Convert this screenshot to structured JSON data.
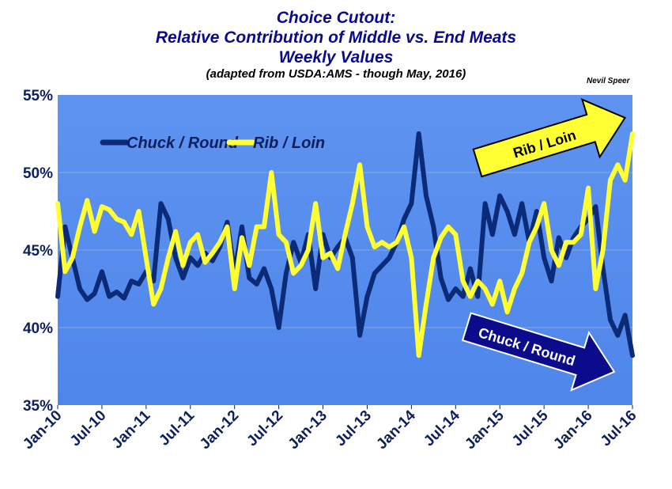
{
  "chart_data": {
    "type": "line",
    "title_lines": [
      "Choice Cutout:",
      "Relative Contribution of Middle vs. End Meats",
      "Weekly Values"
    ],
    "subtitle": "(adapted from USDA:AMS - though May, 2016)",
    "credit": "Nevil Speer",
    "x_ticks": [
      "Jan-10",
      "Jul-10",
      "Jan-11",
      "Jul-11",
      "Jan-12",
      "Jul-12",
      "Jan-13",
      "Jul-13",
      "Jan-14",
      "Jul-14",
      "Jan-15",
      "Jul-15",
      "Jan-16",
      "Jul-16"
    ],
    "x_range": [
      "2010-01",
      "2016-07"
    ],
    "y_ticks": [
      "35%",
      "40%",
      "45%",
      "50%",
      "55%"
    ],
    "ylim": [
      35,
      55
    ],
    "grid": true,
    "legend_position": "top-left",
    "series": [
      {
        "name": "Chuck / Round",
        "color": "#0b2a78",
        "points": [
          [
            "2010-01",
            42.0
          ],
          [
            "2010-02",
            46.5
          ],
          [
            "2010-03",
            44.5
          ],
          [
            "2010-04",
            42.5
          ],
          [
            "2010-05",
            41.8
          ],
          [
            "2010-06",
            42.2
          ],
          [
            "2010-07",
            43.6
          ],
          [
            "2010-08",
            42.0
          ],
          [
            "2010-09",
            42.3
          ],
          [
            "2010-10",
            41.9
          ],
          [
            "2010-11",
            43.0
          ],
          [
            "2010-12",
            42.8
          ],
          [
            "2011-01",
            43.6
          ],
          [
            "2011-02",
            43.0
          ],
          [
            "2011-03",
            48.0
          ],
          [
            "2011-04",
            47.0
          ],
          [
            "2011-05",
            44.5
          ],
          [
            "2011-06",
            43.2
          ],
          [
            "2011-07",
            44.5
          ],
          [
            "2011-08",
            44.0
          ],
          [
            "2011-09",
            44.8
          ],
          [
            "2011-10",
            44.3
          ],
          [
            "2011-11",
            45.2
          ],
          [
            "2011-12",
            46.8
          ],
          [
            "2012-01",
            43.5
          ],
          [
            "2012-02",
            46.5
          ],
          [
            "2012-03",
            43.2
          ],
          [
            "2012-04",
            42.8
          ],
          [
            "2012-05",
            43.8
          ],
          [
            "2012-06",
            42.5
          ],
          [
            "2012-07",
            40.0
          ],
          [
            "2012-08",
            43.5
          ],
          [
            "2012-09",
            45.5
          ],
          [
            "2012-10",
            44.2
          ],
          [
            "2012-11",
            46.0
          ],
          [
            "2012-12",
            42.5
          ],
          [
            "2013-01",
            46.0
          ],
          [
            "2013-02",
            44.5
          ],
          [
            "2013-03",
            45.2
          ],
          [
            "2013-04",
            45.8
          ],
          [
            "2013-05",
            44.5
          ],
          [
            "2013-06",
            39.5
          ],
          [
            "2013-07",
            42.0
          ],
          [
            "2013-08",
            43.5
          ],
          [
            "2013-09",
            44.0
          ],
          [
            "2013-10",
            44.5
          ],
          [
            "2013-11",
            45.5
          ],
          [
            "2013-12",
            47.0
          ],
          [
            "2014-01",
            48.0
          ],
          [
            "2014-02",
            52.5
          ],
          [
            "2014-03",
            48.5
          ],
          [
            "2014-04",
            46.5
          ],
          [
            "2014-05",
            43.2
          ],
          [
            "2014-06",
            41.8
          ],
          [
            "2014-07",
            42.5
          ],
          [
            "2014-08",
            42.0
          ],
          [
            "2014-09",
            43.8
          ],
          [
            "2014-10",
            42.0
          ],
          [
            "2014-11",
            48.0
          ],
          [
            "2014-12",
            46.0
          ],
          [
            "2015-01",
            48.5
          ],
          [
            "2015-02",
            47.5
          ],
          [
            "2015-03",
            46.0
          ],
          [
            "2015-04",
            48.0
          ],
          [
            "2015-05",
            45.5
          ],
          [
            "2015-06",
            47.5
          ],
          [
            "2015-07",
            44.5
          ],
          [
            "2015-08",
            43.0
          ],
          [
            "2015-09",
            45.8
          ],
          [
            "2015-10",
            44.5
          ],
          [
            "2015-11",
            45.8
          ],
          [
            "2015-12",
            46.5
          ],
          [
            "2016-01",
            47.0
          ],
          [
            "2016-02",
            47.8
          ],
          [
            "2016-03",
            43.8
          ],
          [
            "2016-04",
            40.5
          ],
          [
            "2016-05",
            39.5
          ],
          [
            "2016-06",
            40.8
          ],
          [
            "2016-07",
            38.2
          ]
        ]
      },
      {
        "name": "Rib / Loin",
        "color": "#ffff33",
        "points": [
          [
            "2010-01",
            48.0
          ],
          [
            "2010-02",
            43.6
          ],
          [
            "2010-03",
            44.5
          ],
          [
            "2010-04",
            46.5
          ],
          [
            "2010-05",
            48.2
          ],
          [
            "2010-06",
            46.2
          ],
          [
            "2010-07",
            47.8
          ],
          [
            "2010-08",
            47.6
          ],
          [
            "2010-09",
            47.0
          ],
          [
            "2010-10",
            46.8
          ],
          [
            "2010-11",
            46.0
          ],
          [
            "2010-12",
            47.5
          ],
          [
            "2011-01",
            44.5
          ],
          [
            "2011-02",
            41.5
          ],
          [
            "2011-03",
            42.5
          ],
          [
            "2011-04",
            44.5
          ],
          [
            "2011-05",
            46.2
          ],
          [
            "2011-06",
            44.0
          ],
          [
            "2011-07",
            45.5
          ],
          [
            "2011-08",
            46.0
          ],
          [
            "2011-09",
            44.2
          ],
          [
            "2011-10",
            44.8
          ],
          [
            "2011-11",
            45.5
          ],
          [
            "2011-12",
            46.5
          ],
          [
            "2012-01",
            42.5
          ],
          [
            "2012-02",
            45.8
          ],
          [
            "2012-03",
            44.0
          ],
          [
            "2012-04",
            46.5
          ],
          [
            "2012-05",
            46.5
          ],
          [
            "2012-06",
            50.0
          ],
          [
            "2012-07",
            46.0
          ],
          [
            "2012-08",
            45.5
          ],
          [
            "2012-09",
            43.5
          ],
          [
            "2012-10",
            44.0
          ],
          [
            "2012-11",
            45.0
          ],
          [
            "2012-12",
            48.0
          ],
          [
            "2013-01",
            44.5
          ],
          [
            "2013-02",
            44.8
          ],
          [
            "2013-03",
            43.8
          ],
          [
            "2013-04",
            46.0
          ],
          [
            "2013-05",
            48.0
          ],
          [
            "2013-06",
            50.5
          ],
          [
            "2013-07",
            46.5
          ],
          [
            "2013-08",
            45.2
          ],
          [
            "2013-09",
            45.5
          ],
          [
            "2013-10",
            45.2
          ],
          [
            "2013-11",
            45.5
          ],
          [
            "2013-12",
            46.5
          ],
          [
            "2014-01",
            44.5
          ],
          [
            "2014-02",
            38.2
          ],
          [
            "2014-03",
            41.5
          ],
          [
            "2014-04",
            44.5
          ],
          [
            "2014-05",
            45.8
          ],
          [
            "2014-06",
            46.5
          ],
          [
            "2014-07",
            46.0
          ],
          [
            "2014-08",
            43.0
          ],
          [
            "2014-09",
            42.0
          ],
          [
            "2014-10",
            43.0
          ],
          [
            "2014-11",
            42.5
          ],
          [
            "2014-12",
            41.5
          ],
          [
            "2015-01",
            43.0
          ],
          [
            "2015-02",
            41.0
          ],
          [
            "2015-03",
            42.5
          ],
          [
            "2015-04",
            43.5
          ],
          [
            "2015-05",
            45.5
          ],
          [
            "2015-06",
            46.5
          ],
          [
            "2015-07",
            48.0
          ],
          [
            "2015-08",
            45.0
          ],
          [
            "2015-09",
            44.0
          ],
          [
            "2015-10",
            45.5
          ],
          [
            "2015-11",
            45.5
          ],
          [
            "2015-12",
            46.0
          ],
          [
            "2016-01",
            49.0
          ],
          [
            "2016-02",
            42.5
          ],
          [
            "2016-03",
            45.0
          ],
          [
            "2016-04",
            49.5
          ],
          [
            "2016-05",
            50.5
          ],
          [
            "2016-06",
            49.5
          ],
          [
            "2016-07",
            52.5
          ]
        ]
      }
    ],
    "annotations": [
      {
        "text": "Rib / Loin",
        "fill": "#ffff33",
        "text_color": "#000000",
        "direction": "up"
      },
      {
        "text": "Chuck / Round",
        "fill": "#0b0b8c",
        "text_color": "#ffffff",
        "direction": "down"
      }
    ]
  }
}
